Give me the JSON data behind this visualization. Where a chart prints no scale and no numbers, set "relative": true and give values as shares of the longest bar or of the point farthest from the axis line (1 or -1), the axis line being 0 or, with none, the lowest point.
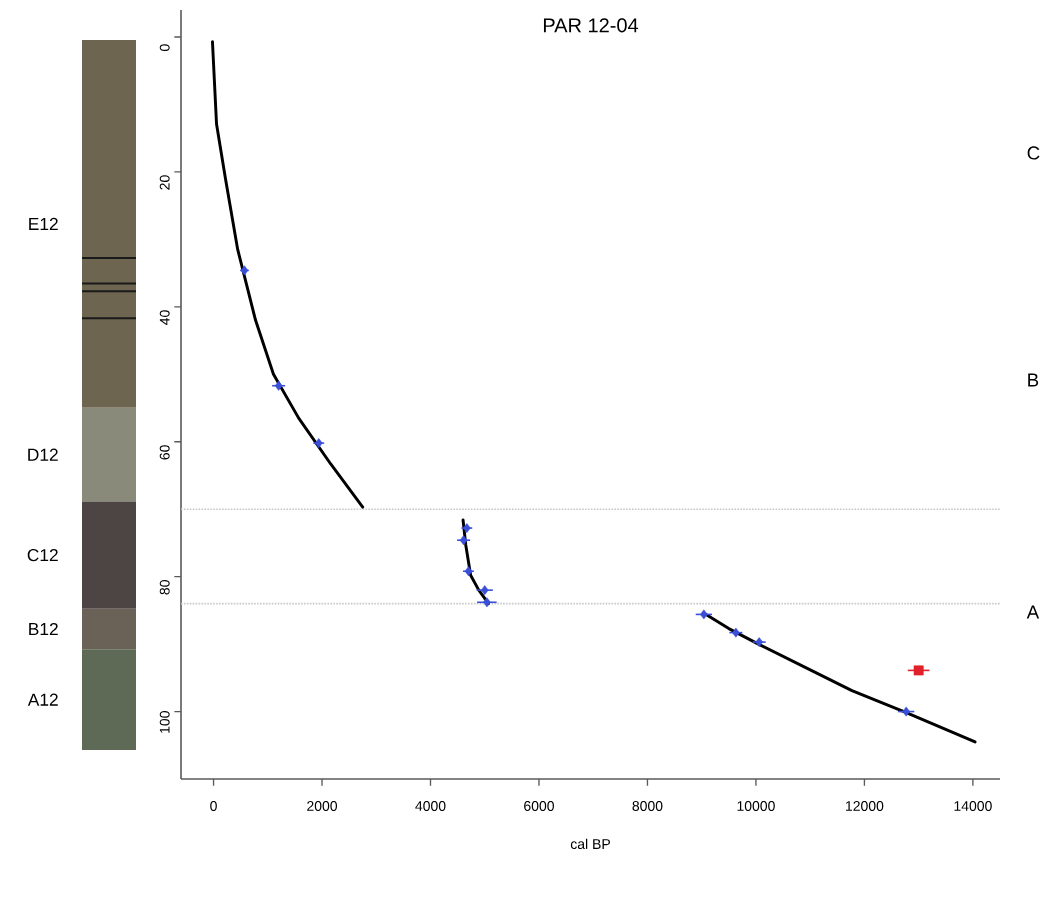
{
  "chart_data": [
    {
      "type": "bar",
      "stacked": true,
      "relative": true,
      "categories": [
        null
      ],
      "series": [
        {
          "name": "A12",
          "color": "#5e6a55",
          "values": [
            0.142
          ]
        },
        {
          "name": "B12",
          "color": "#6a6257",
          "values": [
            0.057
          ]
        },
        {
          "name": "C12",
          "color": "#4d4544",
          "values": [
            0.151
          ]
        },
        {
          "name": "D12",
          "color": "#8a8a7a",
          "values": [
            0.132
          ]
        },
        {
          "name": "E12",
          "color": "#6e6550",
          "values": [
            0.518
          ]
        }
      ],
      "ref_lines": [
        {
          "axis": "y",
          "value": 0.693,
          "color": "#1a1a1a"
        },
        {
          "axis": "y",
          "value": 0.657,
          "color": "#1a1a1a"
        },
        {
          "axis": "y",
          "value": 0.646,
          "color": "#1a1a1a"
        },
        {
          "axis": "y",
          "value": 0.608,
          "color": "#1a1a1a"
        }
      ]
    },
    {
      "type": "line",
      "title": "PAR 12-04",
      "xlabel": "cal BP",
      "annotations": [
        "C",
        "B",
        "A"
      ],
      "xlim": [
        -600,
        14500
      ],
      "ylim": [
        110,
        -4
      ],
      "xticks": [
        0,
        2000,
        4000,
        6000,
        8000,
        10000,
        12000,
        14000
      ],
      "yticks": [
        0,
        20,
        40,
        60,
        80,
        100
      ],
      "series": [
        {
          "type": "line",
          "color": "#000000",
          "marker": "none",
          "x": [
            -20,
            55,
            220,
            445,
            775,
            1105,
            1570,
            2160,
            2750
          ],
          "values": [
            0.7,
            12.9,
            21,
            31.5,
            42,
            50,
            56.5,
            63.3,
            69.7
          ]
        },
        {
          "type": "line",
          "color": "#000000",
          "marker": "none",
          "x": [
            4600,
            4650,
            4740,
            4890,
            5070
          ],
          "values": [
            71.6,
            75.3,
            79.8,
            82,
            84
          ]
        },
        {
          "type": "line",
          "color": "#000000",
          "marker": "none",
          "x": [
            9080,
            9500,
            10020,
            11020,
            11770,
            12750,
            14040
          ],
          "values": [
            85.6,
            87.7,
            89.9,
            93.9,
            96.9,
            100.1,
            104.5
          ]
        },
        {
          "type": "scatter",
          "color": "#3a4fd8",
          "marker": "diamond",
          "x": [
            570,
            1200,
            1940,
            4670,
            4610,
            4700,
            5000,
            5040,
            9040,
            9630,
            10060,
            12770
          ],
          "values": [
            34.6,
            51.7,
            60.2,
            72.8,
            74.6,
            79.2,
            82,
            83.8,
            85.6,
            88.3,
            89.7,
            100
          ],
          "xerrors": [
            80,
            120,
            100,
            100,
            120,
            100,
            150,
            180,
            150,
            120,
            120,
            150
          ]
        },
        {
          "type": "scatter",
          "color": "#e0202a",
          "marker": "square",
          "x": [
            13000
          ],
          "values": [
            93.9
          ],
          "xerrors": [
            200
          ]
        }
      ],
      "ref_lines": [
        {
          "axis": "y",
          "value": 70,
          "color": "#c8c8c8",
          "line_style": "dotted"
        },
        {
          "axis": "y",
          "value": 84,
          "color": "#c8c8c8",
          "line_style": "dotted"
        }
      ]
    }
  ]
}
